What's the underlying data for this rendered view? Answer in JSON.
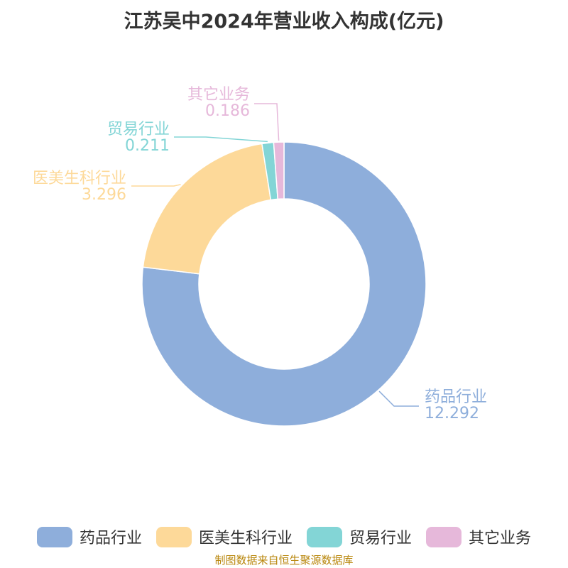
{
  "chart_data": {
    "type": "pie",
    "title": "江苏吴中2024年营业收入构成(亿元)",
    "series": [
      {
        "name": "药品行业",
        "value": 12.292,
        "color": "#8eaedb"
      },
      {
        "name": "医美生科行业",
        "value": 3.296,
        "color": "#fdd999"
      },
      {
        "name": "贸易行业",
        "value": 0.211,
        "color": "#83d5d6"
      },
      {
        "name": "其它业务",
        "value": 0.186,
        "color": "#e6b8da"
      }
    ],
    "value_labels": [
      "12.292",
      "3.296",
      "0.211",
      "0.186"
    ],
    "legend_position": "bottom"
  },
  "source": "制图数据来自恒生聚源数据库"
}
